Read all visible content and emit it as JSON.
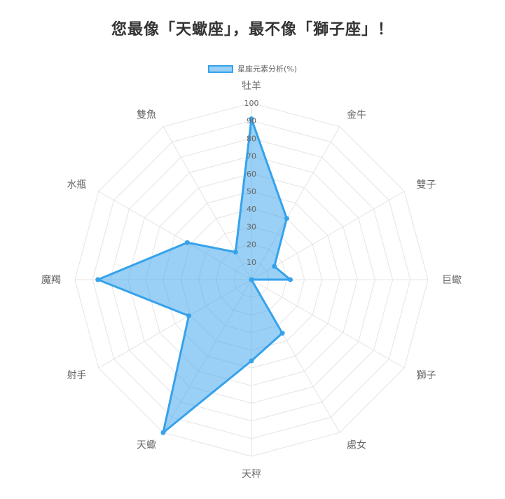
{
  "title": "您最像「天蠍座」，最不像「獅子座」！",
  "colors": {
    "series_fill": "rgba(54,162,235,0.5)",
    "series_line": "#36a2eb",
    "grid": "#e4e4e4",
    "label": "#666666",
    "tick": "#666666"
  },
  "chart_data": {
    "type": "radar",
    "categories": [
      "牡羊",
      "金牛",
      "雙子",
      "巨蠍",
      "獅子",
      "處女",
      "天秤",
      "天蠍",
      "射手",
      "魔羯",
      "水瓶",
      "雙魚"
    ],
    "r_ticks": [
      "10",
      "20",
      "30",
      "40",
      "50",
      "60",
      "70",
      "80",
      "90",
      "100"
    ],
    "rlim": [
      0,
      100
    ],
    "legend_position": "top",
    "grid": true,
    "series": [
      {
        "name": "星座元素分析(%)",
        "values": [
          91,
          40,
          15,
          22,
          0,
          35,
          46,
          100,
          41,
          87,
          42,
          18
        ]
      }
    ]
  }
}
